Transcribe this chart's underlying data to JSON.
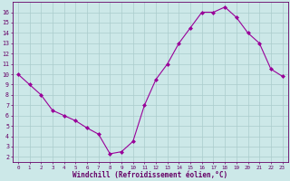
{
  "x": [
    0,
    1,
    2,
    3,
    4,
    5,
    6,
    7,
    8,
    9,
    10,
    11,
    12,
    13,
    14,
    15,
    16,
    17,
    18,
    19,
    20,
    21,
    22,
    23
  ],
  "y": [
    10,
    9,
    8,
    6.5,
    6,
    5.5,
    4.8,
    4.2,
    2.3,
    2.5,
    3.5,
    7.0,
    9.5,
    11.0,
    13.0,
    14.5,
    16.0,
    16.0,
    16.5,
    15.5,
    14.0,
    13.0,
    10.5,
    9.8
  ],
  "line_color": "#990099",
  "marker": "D",
  "marker_size": 2,
  "bg_color": "#cce8e8",
  "grid_color": "#aacccc",
  "xlabel": "Windchill (Refroidissement éolien,°C)",
  "ylabel_ticks": [
    2,
    3,
    4,
    5,
    6,
    7,
    8,
    9,
    10,
    11,
    12,
    13,
    14,
    15,
    16
  ],
  "ylim": [
    1.5,
    17.0
  ],
  "xlim": [
    -0.5,
    23.5
  ],
  "axis_color": "#660066",
  "tick_color": "#660066",
  "xlabel_color": "#660066"
}
